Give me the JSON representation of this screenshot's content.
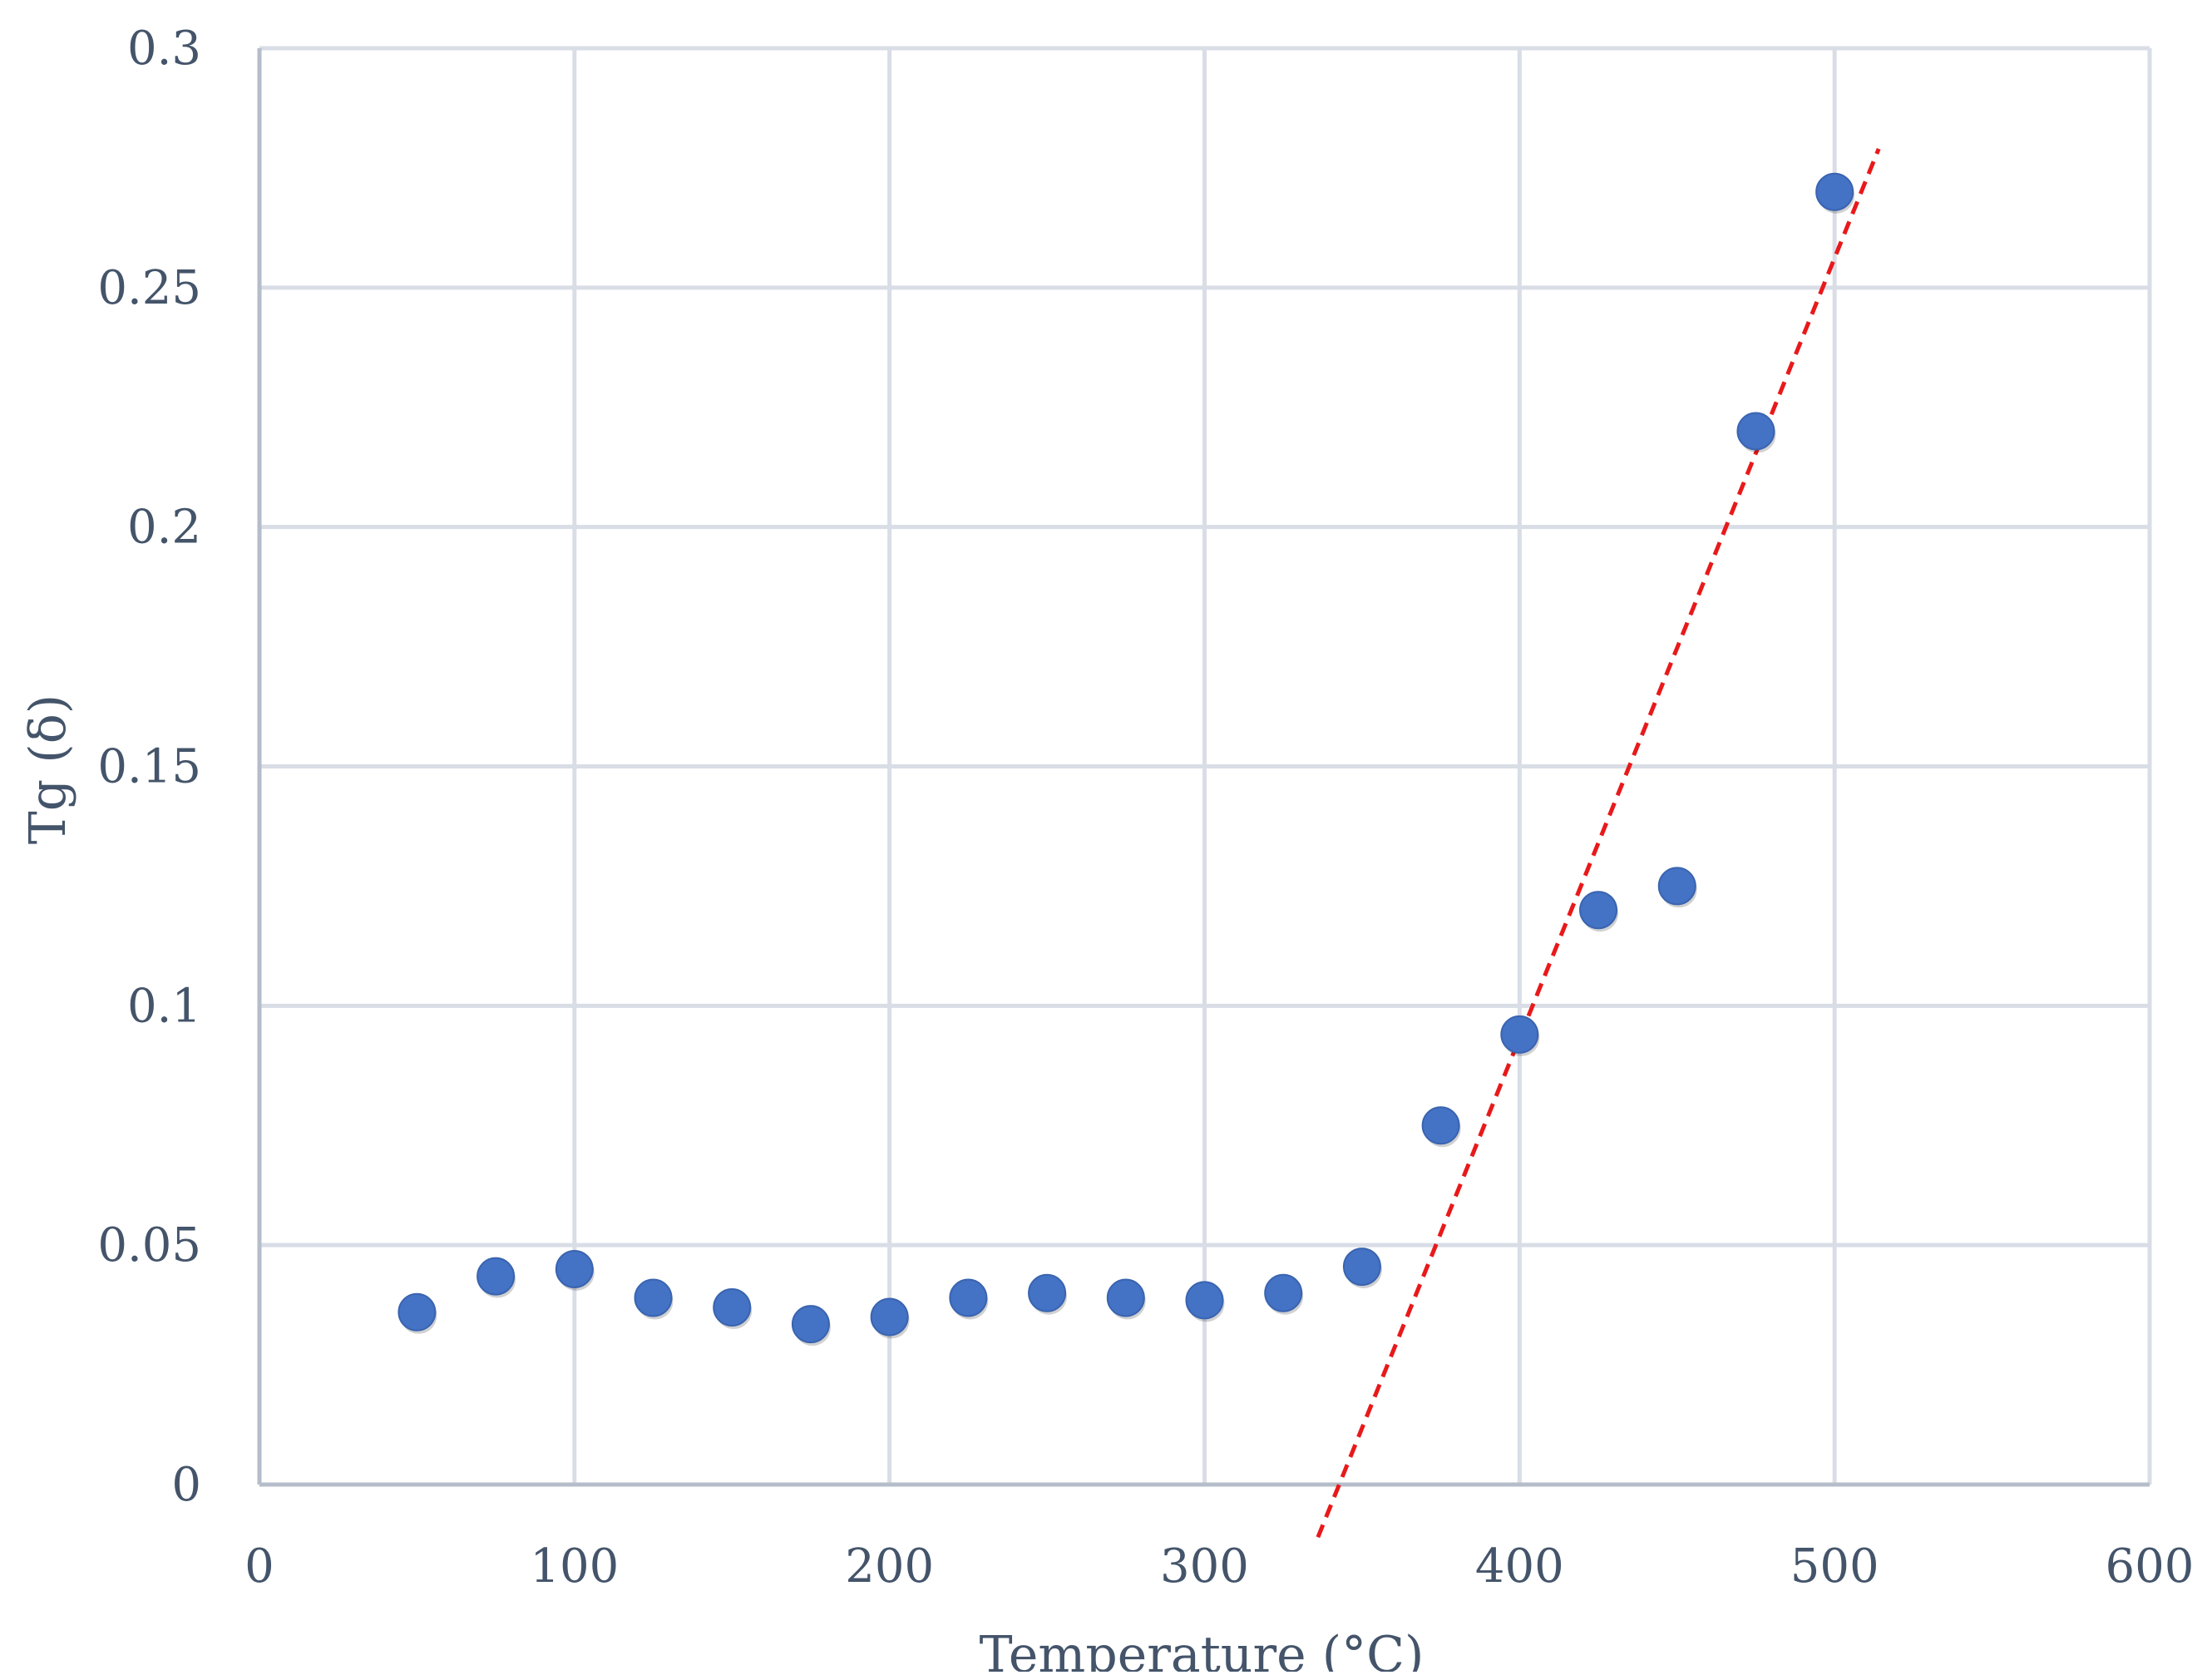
{
  "chart_data": {
    "type": "scatter",
    "title": "",
    "xlabel": "Temperature (°C)",
    "ylabel": "Tg (δ)",
    "xlim": [
      0,
      600
    ],
    "ylim": [
      0,
      0.3
    ],
    "x_ticks": [
      "0",
      "100",
      "200",
      "300",
      "400",
      "500",
      "600"
    ],
    "y_ticks": [
      "0",
      "0.05",
      "0.1",
      "0.15",
      "0.2",
      "0.25",
      "0.3"
    ],
    "grid": true,
    "legend": "none",
    "series": [
      {
        "color": "#4472c4",
        "x": [
          50,
          75,
          100,
          125,
          150,
          175,
          200,
          225,
          250,
          275,
          300,
          325,
          350,
          375,
          400,
          425,
          450,
          475,
          500
        ],
        "y": [
          0.036,
          0.0435,
          0.045,
          0.039,
          0.037,
          0.0335,
          0.035,
          0.039,
          0.04,
          0.039,
          0.0385,
          0.04,
          0.0455,
          0.075,
          0.094,
          0.12,
          0.125,
          0.22,
          0.27
        ]
      }
    ],
    "trendline": {
      "style": "dashed",
      "color": "#e8191a",
      "x": [
        336,
        514
      ],
      "y": [
        -0.011,
        0.279
      ]
    }
  }
}
